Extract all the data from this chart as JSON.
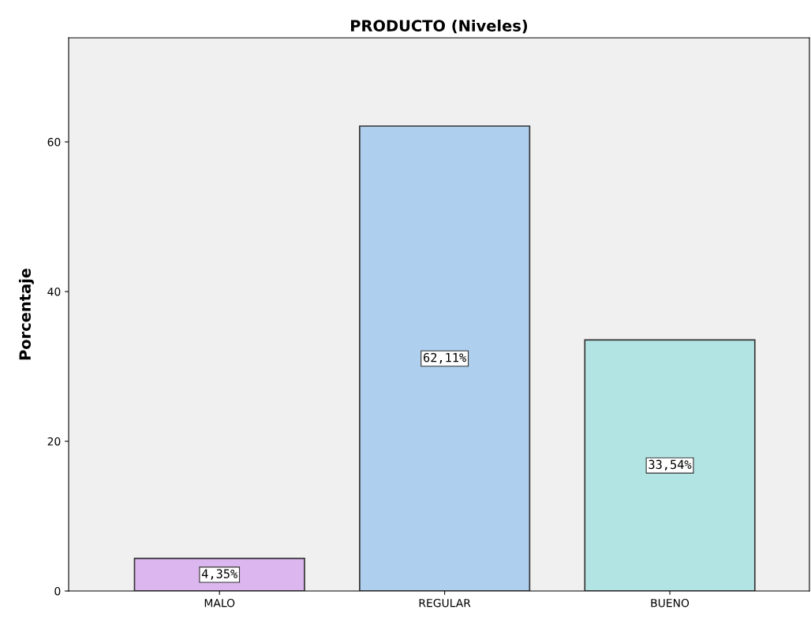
{
  "chart_data": {
    "type": "bar",
    "title": "PRODUCTO (Niveles)",
    "ylabel": "Porcentaje",
    "categories": [
      "MALO",
      "REGULAR",
      "BUENO"
    ],
    "values": [
      4.35,
      62.11,
      33.54
    ],
    "colors": [
      "#dcb6ee",
      "#aecfed",
      "#b3e4e4"
    ],
    "value_labels": [
      "4,35%",
      "62,11%",
      "33,54%"
    ],
    "ylim": [
      0,
      73.9
    ],
    "yticks": [
      0,
      20,
      40,
      60
    ],
    "grid": false,
    "legend": false
  }
}
